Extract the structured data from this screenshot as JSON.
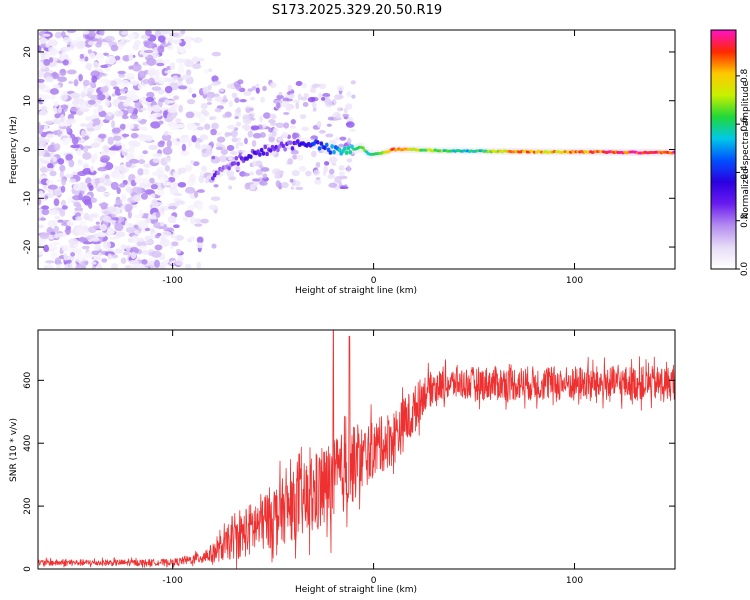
{
  "title": "S173.2025.329.20.50.R19",
  "chart_data": [
    {
      "type": "heatmap",
      "name": "spectrogram",
      "xlabel": "Height of straight line (km)",
      "ylabel": "Frequency (Hz)",
      "xlim": [
        -167,
        150
      ],
      "ylim": [
        -24.5,
        24.5
      ],
      "xticks": [
        -100,
        0,
        100
      ],
      "yticks": [
        -20,
        -10,
        0,
        10,
        20
      ],
      "colorbar": {
        "label": "Normalized spectral amplitude",
        "range": [
          0,
          0.99
        ],
        "ticks": [
          0.0,
          0.2,
          0.4,
          0.6,
          0.8
        ],
        "colormap": [
          "#ffffff",
          "#e7dcf7",
          "#b48cf0",
          "#6a1cf0",
          "#2a00e0",
          "#0050ff",
          "#00c8e8",
          "#20d838",
          "#c8f000",
          "#ffc800",
          "#ff2800",
          "#ff10c8"
        ]
      },
      "signal_track": {
        "x": [
          -80,
          -72,
          -64,
          -56,
          -48,
          -40,
          -34,
          -28,
          -22,
          -16,
          -10,
          -6,
          -2,
          4,
          10,
          20,
          30,
          50,
          70,
          90,
          110,
          130,
          150
        ],
        "freq": [
          -5.5,
          -3.5,
          -1.5,
          -0.5,
          0.5,
          1.0,
          1.5,
          1.0,
          0.0,
          -0.5,
          0.0,
          0.5,
          -1.0,
          -0.8,
          0.0,
          0.0,
          -0.2,
          -0.3,
          -0.4,
          -0.5,
          -0.5,
          -0.6,
          -0.6
        ],
        "amplitude": [
          0.25,
          0.22,
          0.28,
          0.3,
          0.25,
          0.28,
          0.35,
          0.4,
          0.45,
          0.55,
          0.6,
          0.7,
          0.55,
          0.7,
          0.9,
          0.75,
          0.65,
          0.55,
          0.85,
          0.8,
          0.9,
          0.95,
          0.92
        ]
      }
    },
    {
      "type": "line",
      "name": "snr",
      "xlabel": "Height of straight line (km)",
      "ylabel": "SNR (10 * v/v)",
      "xlim": [
        -167,
        150
      ],
      "ylim": [
        0,
        760
      ],
      "xticks": [
        -100,
        0,
        100
      ],
      "yticks": [
        0,
        200,
        400,
        600
      ],
      "color": "#ee3030",
      "series": [
        {
          "name": "SNR envelope",
          "x": [
            -167,
            -120,
            -100,
            -90,
            -80,
            -70,
            -60,
            -50,
            -40,
            -30,
            -20,
            -10,
            0,
            10,
            20,
            25,
            30,
            40,
            60,
            80,
            100,
            120,
            150
          ],
          "mean": [
            20,
            20,
            22,
            30,
            50,
            90,
            130,
            170,
            200,
            230,
            280,
            330,
            380,
            420,
            500,
            560,
            580,
            590,
            590,
            590,
            590,
            590,
            590
          ],
          "noise": [
            10,
            10,
            10,
            15,
            30,
            60,
            90,
            100,
            110,
            130,
            140,
            120,
            90,
            90,
            80,
            60,
            50,
            50,
            55,
            55,
            55,
            55,
            55
          ]
        }
      ],
      "spikes": [
        {
          "x": -20,
          "y": 760
        },
        {
          "x": -12,
          "y": 740
        }
      ]
    }
  ]
}
